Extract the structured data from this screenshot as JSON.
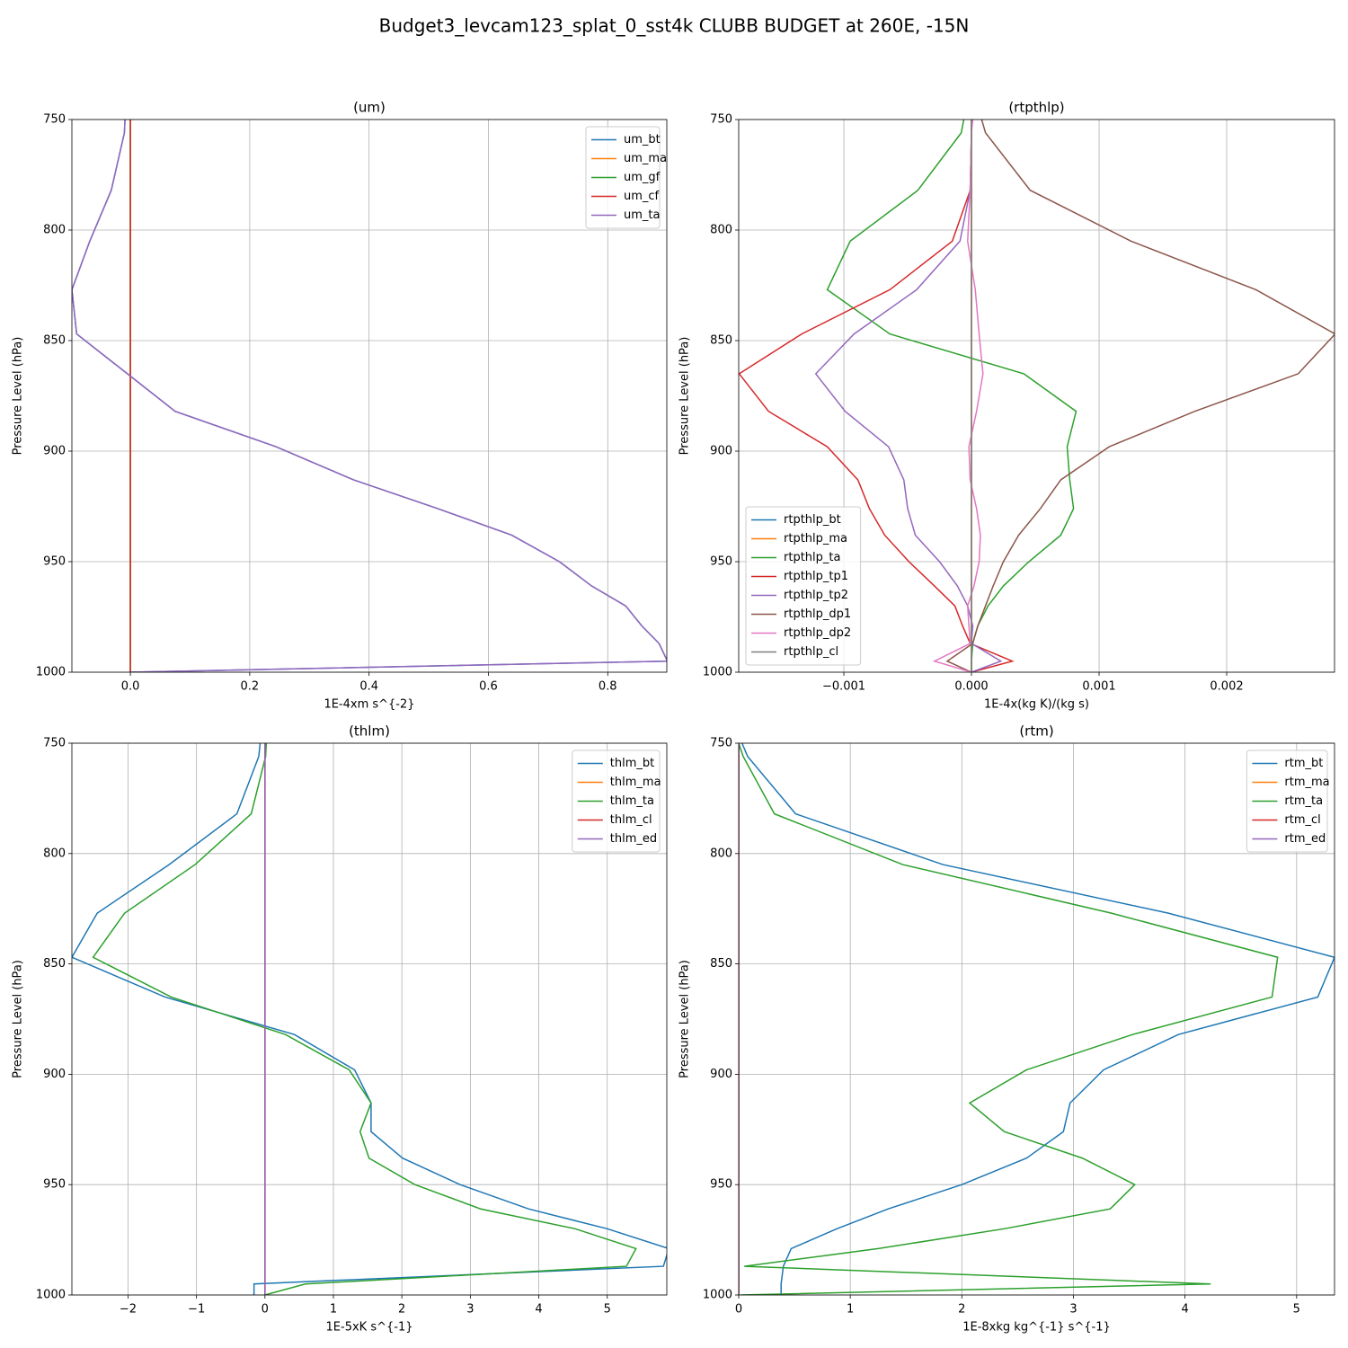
{
  "title": "Budget3_levcam123_splat_0_sst4k CLUBB BUDGET at 260E, -15N",
  "chart_data": [
    {
      "type": "line",
      "title": "(um)",
      "xlabel": "1E-4xm s^{-2}",
      "ylabel": "Pressure Level (hPa)",
      "y": [
        750,
        756,
        782,
        805,
        827,
        847,
        865,
        882,
        898,
        913,
        926,
        938,
        950,
        961,
        970,
        979,
        987,
        995,
        1000
      ],
      "xlim": [
        -0.098,
        0.899
      ],
      "ylim": [
        1000,
        750
      ],
      "xticks": [
        {
          "value": 0,
          "label": "0.0"
        },
        0.2,
        0.4,
        0.6,
        0.8
      ],
      "yticks": [
        750,
        800,
        850,
        900,
        950,
        1000
      ],
      "grid": true,
      "legend": "upper right",
      "series": [
        {
          "name": "um_bt",
          "color": "#1f77b4",
          "values": [
            -0.009,
            -0.01,
            -0.032,
            -0.068,
            -0.098,
            -0.09,
            -0.005,
            0.075,
            0.244,
            0.374,
            0.515,
            0.639,
            0.719,
            0.773,
            0.83,
            0.857,
            0.886,
            0.9,
            0
          ]
        },
        {
          "name": "um_ma",
          "color": "#ff7f0e",
          "values": [
            0,
            0,
            0,
            0,
            0,
            0,
            0,
            0,
            0,
            0,
            0,
            0,
            0,
            0,
            0,
            0,
            0,
            0,
            0
          ]
        },
        {
          "name": "um_gf",
          "color": "#2ca02c",
          "values": [
            0,
            0,
            0,
            0,
            0,
            0,
            0,
            0,
            0,
            0,
            0,
            0,
            0,
            0,
            0,
            0,
            0,
            0,
            0
          ]
        },
        {
          "name": "um_cf",
          "color": "#d62728",
          "values": [
            0,
            0,
            0,
            0,
            0,
            0,
            0,
            0,
            0,
            0,
            0,
            0,
            0,
            0,
            0,
            0,
            0,
            0,
            0
          ]
        },
        {
          "name": "um_ta",
          "color": "#9467bd",
          "values": [
            -0.009,
            -0.01,
            -0.032,
            -0.068,
            -0.098,
            -0.09,
            -0.005,
            0.075,
            0.244,
            0.374,
            0.515,
            0.639,
            0.719,
            0.773,
            0.83,
            0.857,
            0.886,
            0.9,
            0
          ]
        }
      ]
    },
    {
      "type": "line",
      "title": "(rtpthlp)",
      "xlabel": "1E-4x(kg K)/(kg s)",
      "ylabel": "Pressure Level (hPa)",
      "y": [
        750,
        756,
        782,
        805,
        827,
        847,
        865,
        882,
        898,
        913,
        926,
        938,
        950,
        961,
        970,
        979,
        987,
        995,
        1000
      ],
      "xlim": [
        -0.001824,
        0.002845
      ],
      "ylim": [
        1000,
        750
      ],
      "xticks": [
        {
          "value": -0.001,
          "label": "−0.001"
        },
        {
          "value": 0,
          "label": "0.000"
        },
        0.001,
        0.002
      ],
      "yticks": [
        750,
        800,
        850,
        900,
        950,
        1000
      ],
      "grid": true,
      "legend": "lower left",
      "series": [
        {
          "name": "rtpthlp_bt",
          "color": "#1f77b4",
          "values": [
            0,
            0,
            0,
            0,
            0,
            0,
            0,
            0,
            0,
            0,
            0,
            0,
            0,
            0,
            0,
            0,
            0,
            0,
            0
          ]
        },
        {
          "name": "rtpthlp_ma",
          "color": "#ff7f0e",
          "values": [
            0,
            0,
            0,
            0,
            0,
            0,
            0,
            0,
            0,
            0,
            0,
            0,
            0,
            0,
            0,
            0,
            0,
            0,
            0
          ]
        },
        {
          "name": "rtpthlp_ta",
          "color": "#2ca02c",
          "values": [
            -6e-05,
            -8e-05,
            -0.00042,
            -0.00095,
            -0.00113,
            -0.00064,
            0.00041,
            0.00082,
            0.00075,
            0.00077,
            0.0008,
            0.0007,
            0.00045,
            0.00025,
            0.00013,
            5e-05,
            1e-05,
            0,
            0
          ]
        },
        {
          "name": "rtpthlp_tp1",
          "color": "#d62728",
          "values": [
            0,
            0,
            -1e-05,
            -0.00015,
            -0.00064,
            -0.00133,
            -0.00182,
            -0.00159,
            -0.00113,
            -0.00089,
            -0.0008,
            -0.00068,
            -0.00049,
            -0.00029,
            -0.00013,
            -7e-05,
            -1e-05,
            0.00032,
            0
          ]
        },
        {
          "name": "rtpthlp_tp2",
          "color": "#9467bd",
          "values": [
            0,
            0,
            -1e-05,
            -9e-05,
            -0.00043,
            -0.00092,
            -0.00122,
            -0.00099,
            -0.00065,
            -0.00053,
            -0.0005,
            -0.00044,
            -0.00025,
            -0.00011,
            -3e-05,
            1e-05,
            0,
            0.00023,
            0
          ]
        },
        {
          "name": "rtpthlp_dp1",
          "color": "#8c564b",
          "values": [
            8e-05,
            0.00011,
            0.00046,
            0.00125,
            0.00223,
            0.00285,
            0.00256,
            0.00175,
            0.00108,
            0.0007,
            0.00054,
            0.00037,
            0.00025,
            0.00017,
            0.00011,
            5e-05,
            1e-05,
            -0.00019,
            0
          ]
        },
        {
          "name": "rtpthlp_dp2",
          "color": "#e377c2",
          "values": [
            1e-05,
            0,
            -1e-05,
            -3e-05,
            3e-05,
            6e-05,
            9e-05,
            4e-05,
            -2e-05,
            -1e-05,
            4e-05,
            7e-05,
            6e-05,
            2e-05,
            -3e-05,
            -2e-05,
            -1e-05,
            -0.00029,
            0
          ]
        },
        {
          "name": "rtpthlp_cl",
          "color": "#7f7f7f",
          "values": [
            0,
            0,
            0,
            0,
            0,
            0,
            0,
            0,
            0,
            0,
            0,
            0,
            0,
            0,
            0,
            0,
            0,
            0,
            0
          ]
        }
      ]
    },
    {
      "type": "line",
      "title": "(thlm)",
      "xlabel": "1E-5xK s^{-1}",
      "ylabel": "Pressure Level (hPa)",
      "y": [
        750,
        756,
        782,
        805,
        827,
        847,
        865,
        882,
        898,
        913,
        926,
        938,
        950,
        961,
        970,
        979,
        987,
        995,
        1000
      ],
      "xlim": [
        -2.82,
        5.87
      ],
      "ylim": [
        1000,
        750
      ],
      "xticks": [
        {
          "value": -2,
          "label": "−2"
        },
        {
          "value": -1,
          "label": "−1"
        },
        0,
        1,
        2,
        3,
        4,
        5
      ],
      "yticks": [
        750,
        800,
        850,
        900,
        950,
        1000
      ],
      "grid": true,
      "legend": "upper right",
      "series": [
        {
          "name": "thlm_bt",
          "color": "#1f77b4",
          "values": [
            -0.07,
            -0.09,
            -0.41,
            -1.4,
            -2.45,
            -2.82,
            -1.46,
            0.43,
            1.31,
            1.55,
            1.55,
            2.01,
            2.85,
            3.85,
            5.0,
            5.9,
            5.82,
            -0.16,
            -0.16
          ]
        },
        {
          "name": "thlm_ma",
          "color": "#ff7f0e",
          "values": [
            0,
            0,
            0,
            0,
            0,
            0,
            0,
            0,
            0,
            0,
            0,
            0,
            0,
            0,
            0,
            0,
            0,
            0,
            0
          ]
        },
        {
          "name": "thlm_ta",
          "color": "#2ca02c",
          "values": [
            0.02,
            0.01,
            -0.2,
            -1.02,
            -2.05,
            -2.51,
            -1.37,
            0.3,
            1.23,
            1.55,
            1.39,
            1.52,
            2.19,
            3.15,
            4.53,
            5.42,
            5.28,
            0.59,
            0
          ]
        },
        {
          "name": "thlm_cl",
          "color": "#d62728",
          "values": [
            0,
            0,
            0,
            0,
            0,
            0,
            0,
            0,
            0,
            0,
            0,
            0,
            0,
            0,
            0,
            0,
            0,
            0,
            0
          ]
        },
        {
          "name": "thlm_ed",
          "color": "#9467bd",
          "values": [
            0,
            0,
            0,
            0,
            0,
            0,
            0,
            0,
            0,
            0,
            0,
            0,
            0,
            0,
            0,
            0,
            0,
            0,
            0
          ]
        }
      ]
    },
    {
      "type": "line",
      "title": "(rtm)",
      "xlabel": "1E-8xkg kg^{-1} s^{-1}",
      "ylabel": "Pressure Level (hPa)",
      "y": [
        750,
        756,
        782,
        805,
        827,
        847,
        865,
        882,
        898,
        913,
        926,
        938,
        950,
        961,
        970,
        979,
        987,
        995,
        1000
      ],
      "xlim": [
        0,
        5.34
      ],
      "ylim": [
        1000,
        750
      ],
      "xticks": [
        0,
        1,
        2,
        3,
        4,
        5
      ],
      "yticks": [
        750,
        800,
        850,
        900,
        950,
        1000
      ],
      "grid": true,
      "legend": "upper right",
      "series": [
        {
          "name": "rtm_bt",
          "color": "#1f77b4",
          "values": [
            0.03,
            0.08,
            0.51,
            1.83,
            3.85,
            5.34,
            5.19,
            3.94,
            3.27,
            2.97,
            2.91,
            2.58,
            2.0,
            1.34,
            0.88,
            0.47,
            0.4,
            0.38,
            0.38
          ]
        },
        {
          "name": "rtm_ma",
          "color": "#ff7f0e",
          "values": [
            0,
            0,
            0,
            0,
            0,
            0,
            0,
            0,
            0,
            0,
            0,
            0,
            0,
            0,
            0,
            0,
            0,
            0,
            0
          ]
        },
        {
          "name": "rtm_ta",
          "color": "#2ca02c",
          "values": [
            0,
            0.04,
            0.32,
            1.47,
            3.34,
            4.83,
            4.78,
            3.53,
            2.58,
            2.07,
            2.38,
            3.08,
            3.55,
            3.33,
            2.38,
            1.25,
            0.05,
            4.23,
            0.02
          ]
        },
        {
          "name": "rtm_cl",
          "color": "#d62728",
          "values": [
            0,
            0,
            0,
            0,
            0,
            0,
            0,
            0,
            0,
            0,
            0,
            0,
            0,
            0,
            0,
            0,
            0,
            0,
            0
          ]
        },
        {
          "name": "rtm_ed",
          "color": "#9467bd",
          "values": [
            0,
            0,
            0,
            0,
            0,
            0,
            0,
            0,
            0,
            0,
            0,
            0,
            0,
            0,
            0,
            0,
            0,
            0,
            0
          ]
        }
      ]
    }
  ]
}
